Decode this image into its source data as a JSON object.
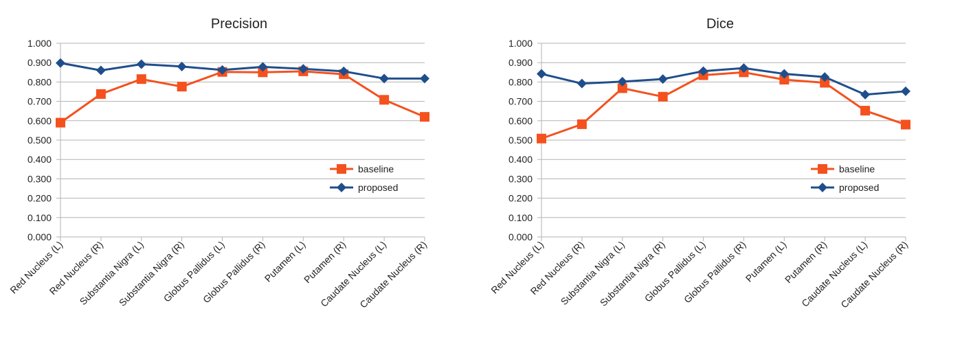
{
  "colors": {
    "baseline": "#f4511e",
    "proposed": "#1f4e8c",
    "grid": "#b3b3b3",
    "axis": "#b3b3b3"
  },
  "chart_data": [
    {
      "type": "line",
      "title": "Precision",
      "categories": [
        "Red Nucleus (L)",
        "Red Nucleus (R)",
        "Substantia Nigra (L)",
        "Substantia Nigra (R)",
        "Globus Pallidus (L)",
        "Globus Pallidus (R)",
        "Putamen (L)",
        "Putamen (R)",
        "Caudate Nucleus (L)",
        "Caudate Nucleus (R)"
      ],
      "series": [
        {
          "name": "baseline",
          "marker": "square",
          "values": [
            0.59,
            0.738,
            0.815,
            0.776,
            0.852,
            0.85,
            0.855,
            0.84,
            0.708,
            0.62
          ]
        },
        {
          "name": "proposed",
          "marker": "diamond",
          "values": [
            0.898,
            0.86,
            0.892,
            0.88,
            0.862,
            0.878,
            0.868,
            0.855,
            0.818,
            0.818
          ]
        }
      ],
      "ylim": [
        0,
        1
      ],
      "yticks": [
        "0.000",
        "0.100",
        "0.200",
        "0.300",
        "0.400",
        "0.500",
        "0.600",
        "0.700",
        "0.800",
        "0.900",
        "1.000"
      ],
      "grid": true,
      "legend": "right"
    },
    {
      "type": "line",
      "title": "Dice",
      "categories": [
        "Red Nucleus (L)",
        "Red Nucleus (R)",
        "Substantia Nigra (L)",
        "Substantia Nigra (R)",
        "Globus Pallidus (L)",
        "Globus Pallidus (R)",
        "Putamen (L)",
        "Putamen (R)",
        "Caudate Nucleus (L)",
        "Caudate Nucleus (R)"
      ],
      "series": [
        {
          "name": "baseline",
          "marker": "square",
          "values": [
            0.508,
            0.582,
            0.768,
            0.724,
            0.835,
            0.85,
            0.812,
            0.796,
            0.652,
            0.58
          ]
        },
        {
          "name": "proposed",
          "marker": "diamond",
          "values": [
            0.842,
            0.792,
            0.802,
            0.815,
            0.856,
            0.872,
            0.842,
            0.826,
            0.735,
            0.752
          ]
        }
      ],
      "ylim": [
        0,
        1
      ],
      "yticks": [
        "0.000",
        "0.100",
        "0.200",
        "0.300",
        "0.400",
        "0.500",
        "0.600",
        "0.700",
        "0.800",
        "0.900",
        "1.000"
      ],
      "grid": true,
      "legend": "right"
    }
  ]
}
